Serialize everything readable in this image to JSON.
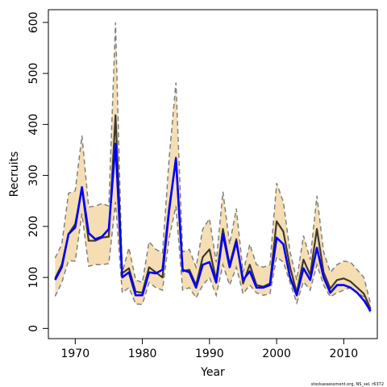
{
  "chart_data": {
    "type": "area",
    "xlabel": "Year",
    "ylabel": "Recruits",
    "xlim": [
      1966,
      2015
    ],
    "ylim": [
      -20,
      625
    ],
    "xticks": [
      1970,
      1980,
      1990,
      2000,
      2010
    ],
    "yticks": [
      0,
      100,
      200,
      300,
      400,
      500,
      600
    ],
    "grid": false,
    "legend": "none",
    "footnote": "stockassessment.org, NS_sel, r6372",
    "colors": {
      "band_fill": "#f5deb3",
      "bound_line": "#808080",
      "estimate_line": "#000000",
      "highlight_line": "#0000ff"
    },
    "x": [
      1967,
      1968,
      1969,
      1970,
      1971,
      1972,
      1973,
      1974,
      1975,
      1976,
      1977,
      1978,
      1979,
      1980,
      1981,
      1982,
      1983,
      1984,
      1985,
      1986,
      1987,
      1988,
      1989,
      1990,
      1991,
      1992,
      1993,
      1994,
      1995,
      1996,
      1997,
      1998,
      1999,
      2000,
      2001,
      2002,
      2003,
      2004,
      2005,
      2006,
      2007,
      2008,
      2009,
      2010,
      2011,
      2012,
      2013,
      2014
    ],
    "series": [
      {
        "values": [
          138,
          165,
          265,
          270,
          378,
          238,
          240,
          245,
          240,
          600,
          108,
          158,
          95,
          90,
          170,
          155,
          148,
          335,
          482,
          150,
          155,
          120,
          195,
          215,
          130,
          268,
          165,
          235,
          110,
          165,
          125,
          120,
          125,
          285,
          248,
          150,
          95,
          182,
          135,
          260,
          150,
          110,
          125,
          132,
          130,
          115,
          100,
          48
        ]
      },
      {
        "values": [
          63,
          90,
          133,
          132,
          225,
          122,
          125,
          125,
          127,
          248,
          70,
          80,
          48,
          47,
          90,
          80,
          75,
          178,
          240,
          75,
          80,
          60,
          85,
          100,
          65,
          125,
          85,
          120,
          68,
          85,
          70,
          65,
          68,
          140,
          130,
          90,
          50,
          92,
          75,
          125,
          85,
          62,
          70,
          75,
          80,
          70,
          62,
          28
        ]
      },
      {
        "values": [
          98,
          125,
          185,
          205,
          275,
          172,
          172,
          178,
          180,
          418,
          108,
          118,
          72,
          70,
          120,
          110,
          100,
          230,
          335,
          112,
          115,
          85,
          140,
          155,
          95,
          195,
          125,
          175,
          88,
          125,
          85,
          82,
          88,
          210,
          190,
          120,
          70,
          135,
          105,
          195,
          110,
          78,
          95,
          98,
          92,
          80,
          68,
          38
        ]
      },
      {
        "values": [
          95,
          120,
          185,
          198,
          277,
          187,
          175,
          180,
          195,
          362,
          100,
          110,
          65,
          65,
          110,
          108,
          115,
          235,
          332,
          115,
          110,
          80,
          125,
          130,
          90,
          185,
          120,
          170,
          95,
          112,
          80,
          80,
          85,
          178,
          165,
          100,
          65,
          118,
          95,
          158,
          100,
          70,
          85,
          85,
          80,
          70,
          55,
          34
        ]
      }
    ]
  }
}
